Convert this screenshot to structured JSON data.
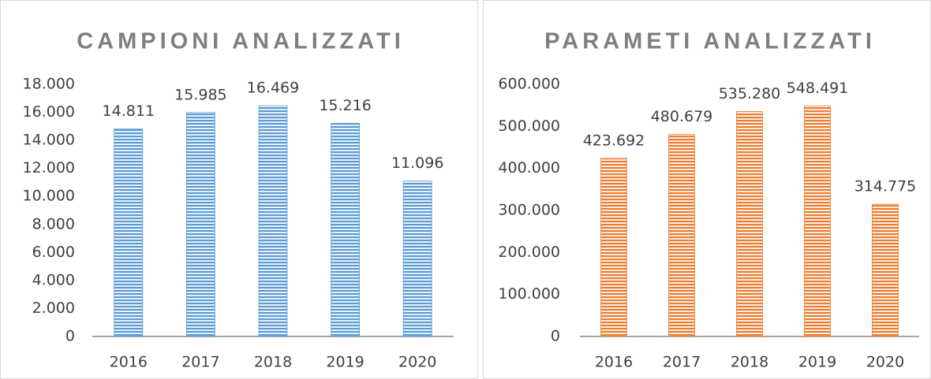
{
  "chart_data": [
    {
      "type": "bar",
      "title": "CAMPIONI ANALIZZATI",
      "categories": [
        "2016",
        "2017",
        "2018",
        "2019",
        "2020"
      ],
      "values": [
        14811,
        15985,
        16469,
        15216,
        11096
      ],
      "value_labels": [
        "14.811",
        "15.985",
        "16.469",
        "15.216",
        "11.096"
      ],
      "color": "#5b9bd5",
      "ylim": [
        0,
        18000
      ],
      "yticks": [
        0,
        {
          "value": 2000,
          "label": "2.000"
        },
        {
          "value": 4000,
          "label": "4.000"
        },
        {
          "value": 6000,
          "label": "6.000"
        },
        {
          "value": 8000,
          "label": "8.000"
        },
        {
          "value": 10000,
          "label": "10.000"
        },
        {
          "value": 12000,
          "label": "12.000"
        },
        {
          "value": 14000,
          "label": "14.000"
        },
        {
          "value": 16000,
          "label": "16.000"
        },
        {
          "value": 18000,
          "label": "18.000"
        }
      ],
      "grid": false
    },
    {
      "type": "bar",
      "title": "PARAMETI ANALIZZATI",
      "categories": [
        "2016",
        "2017",
        "2018",
        "2019",
        "2020"
      ],
      "values": [
        423692,
        480679,
        535280,
        548491,
        314775
      ],
      "value_labels": [
        "423.692",
        "480.679",
        "535.280",
        "548.491",
        "314.775"
      ],
      "color": "#ed7d31",
      "ylim": [
        0,
        600000
      ],
      "yticks": [
        0,
        {
          "value": 100000,
          "label": "100.000"
        },
        {
          "value": 200000,
          "label": "200.000"
        },
        {
          "value": 300000,
          "label": "300.000"
        },
        {
          "value": 400000,
          "label": "400.000"
        },
        {
          "value": 500000,
          "label": "500.000"
        },
        {
          "value": 600000,
          "label": "600.000"
        }
      ],
      "grid": false
    }
  ]
}
